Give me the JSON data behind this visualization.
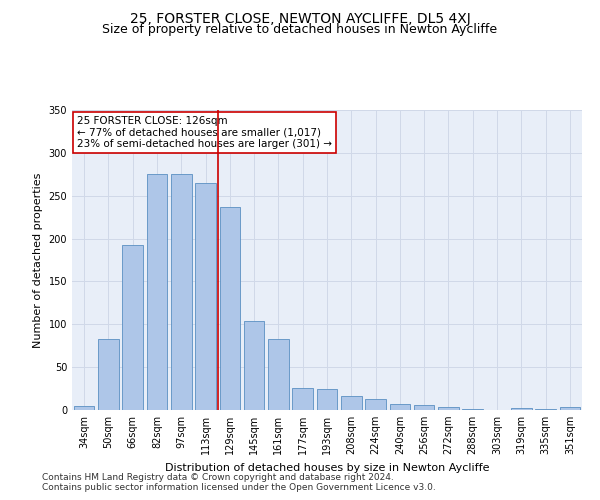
{
  "title": "25, FORSTER CLOSE, NEWTON AYCLIFFE, DL5 4XJ",
  "subtitle": "Size of property relative to detached houses in Newton Aycliffe",
  "xlabel": "Distribution of detached houses by size in Newton Aycliffe",
  "ylabel": "Number of detached properties",
  "categories": [
    "34sqm",
    "50sqm",
    "66sqm",
    "82sqm",
    "97sqm",
    "113sqm",
    "129sqm",
    "145sqm",
    "161sqm",
    "177sqm",
    "193sqm",
    "208sqm",
    "224sqm",
    "240sqm",
    "256sqm",
    "272sqm",
    "288sqm",
    "303sqm",
    "319sqm",
    "335sqm",
    "351sqm"
  ],
  "values": [
    5,
    83,
    193,
    275,
    275,
    265,
    237,
    104,
    83,
    26,
    25,
    16,
    13,
    7,
    6,
    4,
    1,
    0,
    2,
    1,
    3
  ],
  "bar_color": "#aec6e8",
  "bar_edge_color": "#5a8fc2",
  "highlight_line_index": 5,
  "annotation_line1": "25 FORSTER CLOSE: 126sqm",
  "annotation_line2": "← 77% of detached houses are smaller (1,017)",
  "annotation_line3": "23% of semi-detached houses are larger (301) →",
  "annotation_box_color": "#ffffff",
  "annotation_box_edge_color": "#cc0000",
  "ylim": [
    0,
    350
  ],
  "yticks": [
    0,
    50,
    100,
    150,
    200,
    250,
    300,
    350
  ],
  "grid_color": "#d0d8e8",
  "bg_color": "#e8eef8",
  "footer1": "Contains HM Land Registry data © Crown copyright and database right 2024.",
  "footer2": "Contains public sector information licensed under the Open Government Licence v3.0.",
  "title_fontsize": 10,
  "subtitle_fontsize": 9,
  "axis_label_fontsize": 8,
  "tick_fontsize": 7,
  "annotation_fontsize": 7.5,
  "footer_fontsize": 6.5
}
